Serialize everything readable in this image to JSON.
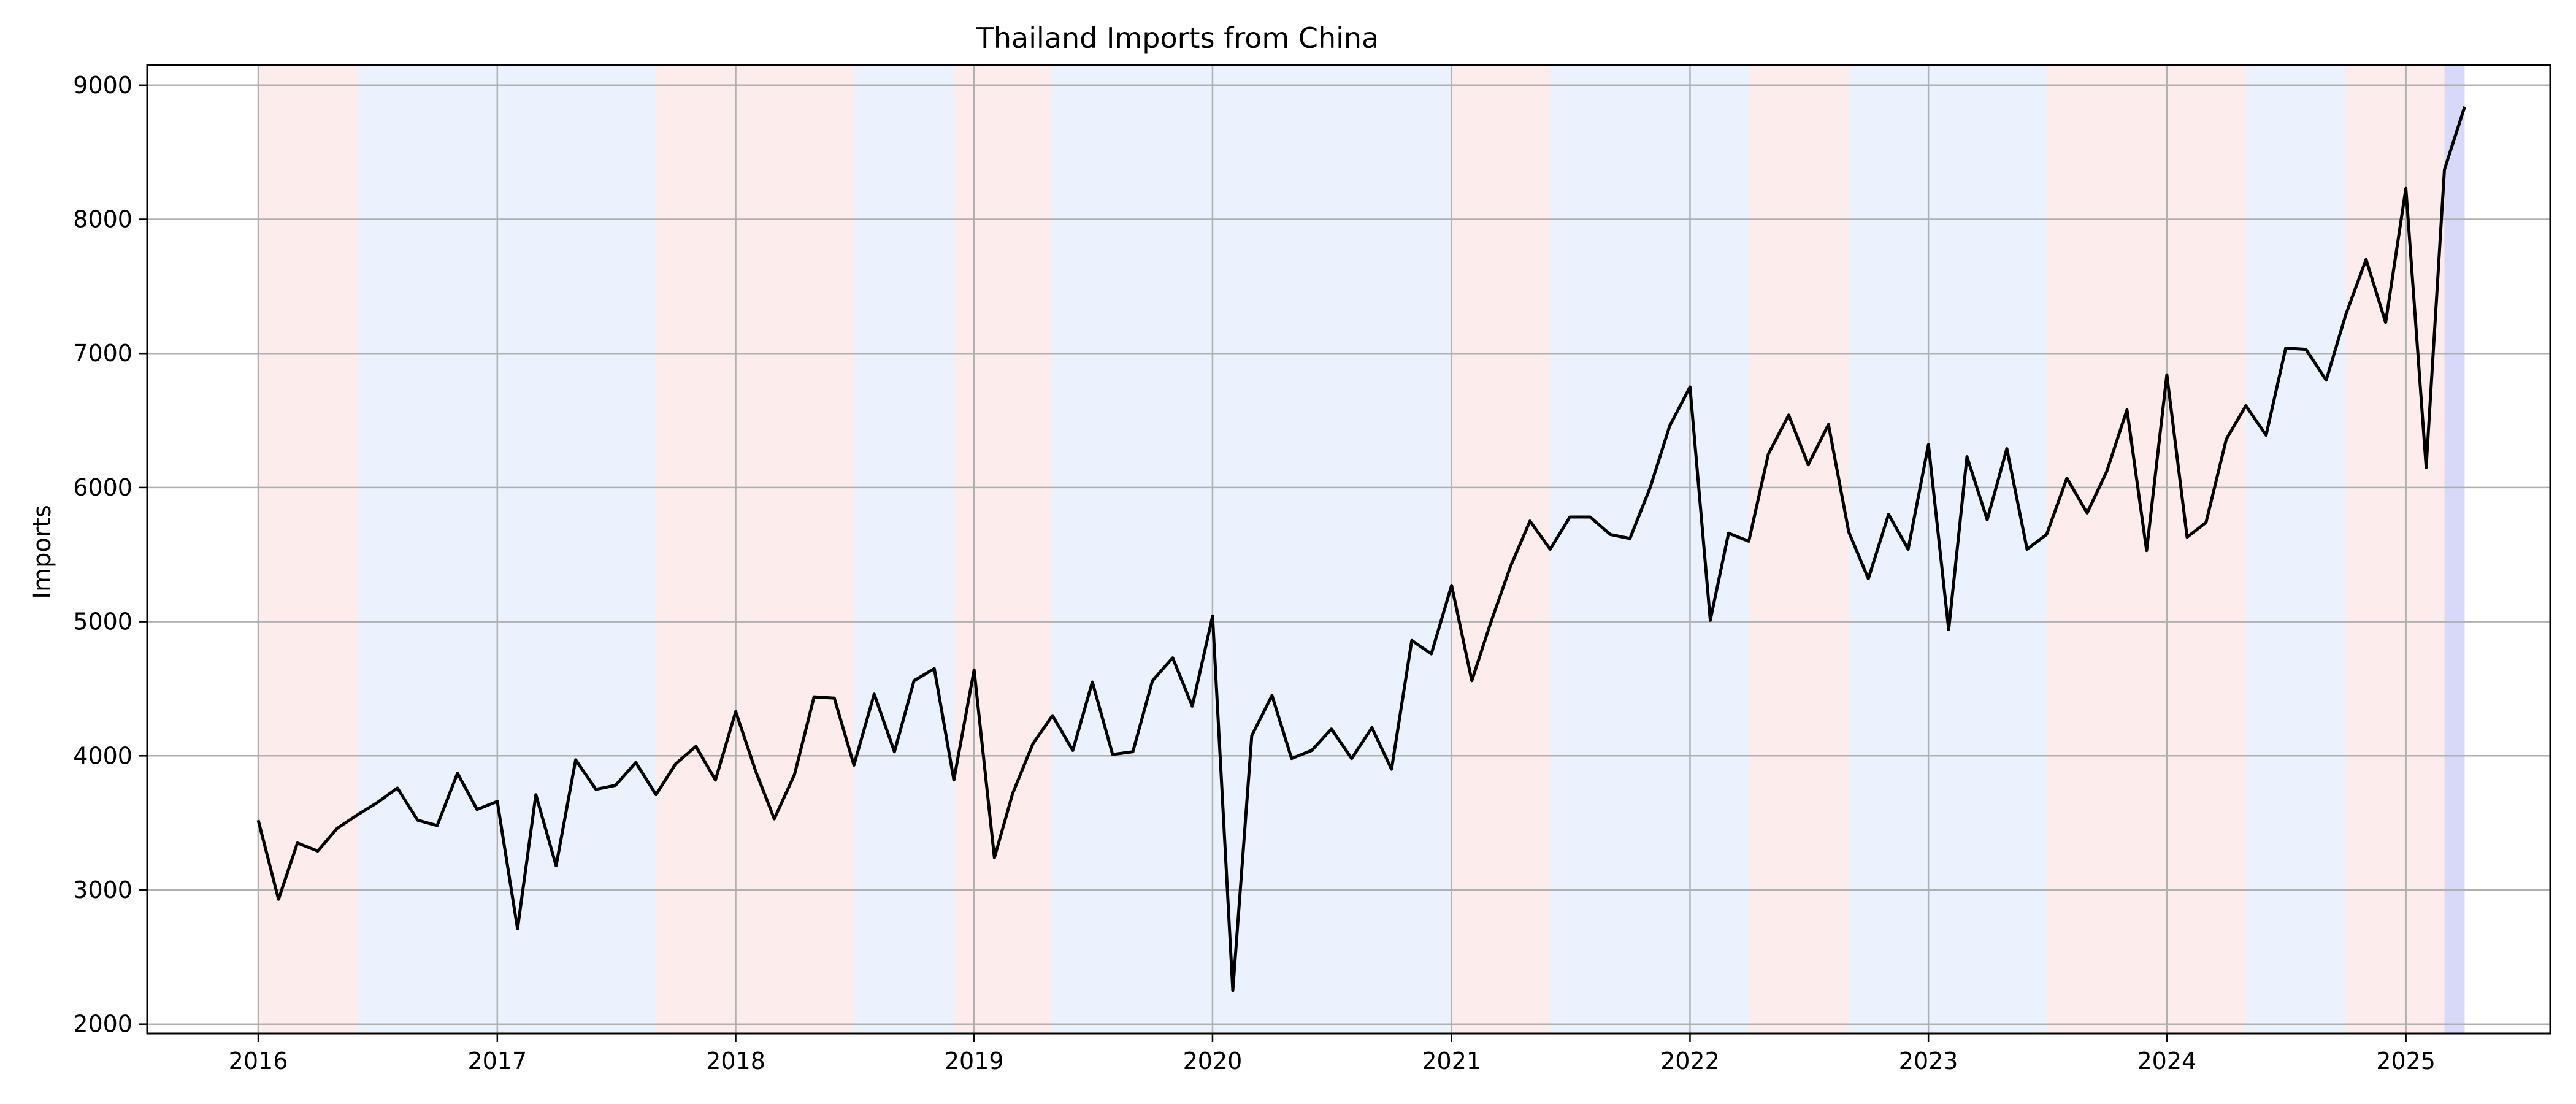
{
  "chart_data": {
    "type": "line",
    "title": "Thailand Imports from China",
    "xlabel": "",
    "ylabel": "Imports",
    "x_start": "2016-01",
    "x_frequency": "monthly",
    "x_ticks": [
      "2016",
      "2017",
      "2018",
      "2019",
      "2020",
      "2021",
      "2022",
      "2023",
      "2024",
      "2025"
    ],
    "y_ticks": [
      2000,
      3000,
      4000,
      5000,
      6000,
      7000,
      8000,
      9000
    ],
    "xlim": [
      "2015-07-15",
      "2025-08-10"
    ],
    "ylim": [
      1930,
      9150
    ],
    "grid": true,
    "legend": "none",
    "colors": {
      "line": "#000000",
      "band_red": "#fdecec",
      "band_blue": "#eaf3fd",
      "band_highlight": "#d8d8f8",
      "grid": "#b0b0b0"
    },
    "series": [
      {
        "color": "#000000",
        "values": [
          3520,
          2930,
          3350,
          3290,
          3460,
          3560,
          3650,
          3760,
          3520,
          3480,
          3870,
          3600,
          3660,
          2710,
          3710,
          3180,
          3970,
          3750,
          3780,
          3950,
          3710,
          3940,
          4070,
          3820,
          4330,
          3880,
          3530,
          3860,
          4440,
          4430,
          3930,
          4460,
          4030,
          4560,
          4650,
          3820,
          4640,
          3240,
          3720,
          4090,
          4300,
          4040,
          4550,
          4010,
          4030,
          4560,
          4730,
          4370,
          5040,
          2250,
          4150,
          4450,
          3980,
          4040,
          4200,
          3980,
          4210,
          3900,
          4860,
          4760,
          5270,
          4560,
          4980,
          5410,
          5750,
          5540,
          5780,
          5780,
          5650,
          5620,
          6000,
          6460,
          6750,
          5010,
          5660,
          5600,
          6250,
          6540,
          6170,
          6470,
          5670,
          5320,
          5800,
          5540,
          6320,
          4940,
          6230,
          5760,
          6290,
          5540,
          5650,
          6070,
          5810,
          6120,
          6580,
          5530,
          6840,
          5630,
          5740,
          6360,
          6610,
          6390,
          7040,
          7030,
          6800,
          7290,
          7700,
          7230,
          8230,
          6150,
          8370,
          8840
        ]
      }
    ],
    "bands": [
      {
        "start": "2016-01-01",
        "end": "2016-06-01",
        "color": "band_red"
      },
      {
        "start": "2016-06-01",
        "end": "2017-09-01",
        "color": "band_blue"
      },
      {
        "start": "2017-09-01",
        "end": "2018-07-01",
        "color": "band_red"
      },
      {
        "start": "2018-07-01",
        "end": "2018-12-01",
        "color": "band_blue"
      },
      {
        "start": "2018-12-01",
        "end": "2019-05-01",
        "color": "band_red"
      },
      {
        "start": "2019-05-01",
        "end": "2021-01-01",
        "color": "band_blue"
      },
      {
        "start": "2021-01-01",
        "end": "2021-06-01",
        "color": "band_red"
      },
      {
        "start": "2021-06-01",
        "end": "2022-04-01",
        "color": "band_blue"
      },
      {
        "start": "2022-04-01",
        "end": "2022-09-01",
        "color": "band_red"
      },
      {
        "start": "2022-09-01",
        "end": "2023-07-01",
        "color": "band_blue"
      },
      {
        "start": "2023-07-01",
        "end": "2024-05-01",
        "color": "band_red"
      },
      {
        "start": "2024-05-01",
        "end": "2024-10-01",
        "color": "band_blue"
      },
      {
        "start": "2024-10-01",
        "end": "2025-03-01",
        "color": "band_red"
      },
      {
        "start": "2025-03-01",
        "end": "2025-04-01",
        "color": "band_highlight"
      }
    ]
  }
}
